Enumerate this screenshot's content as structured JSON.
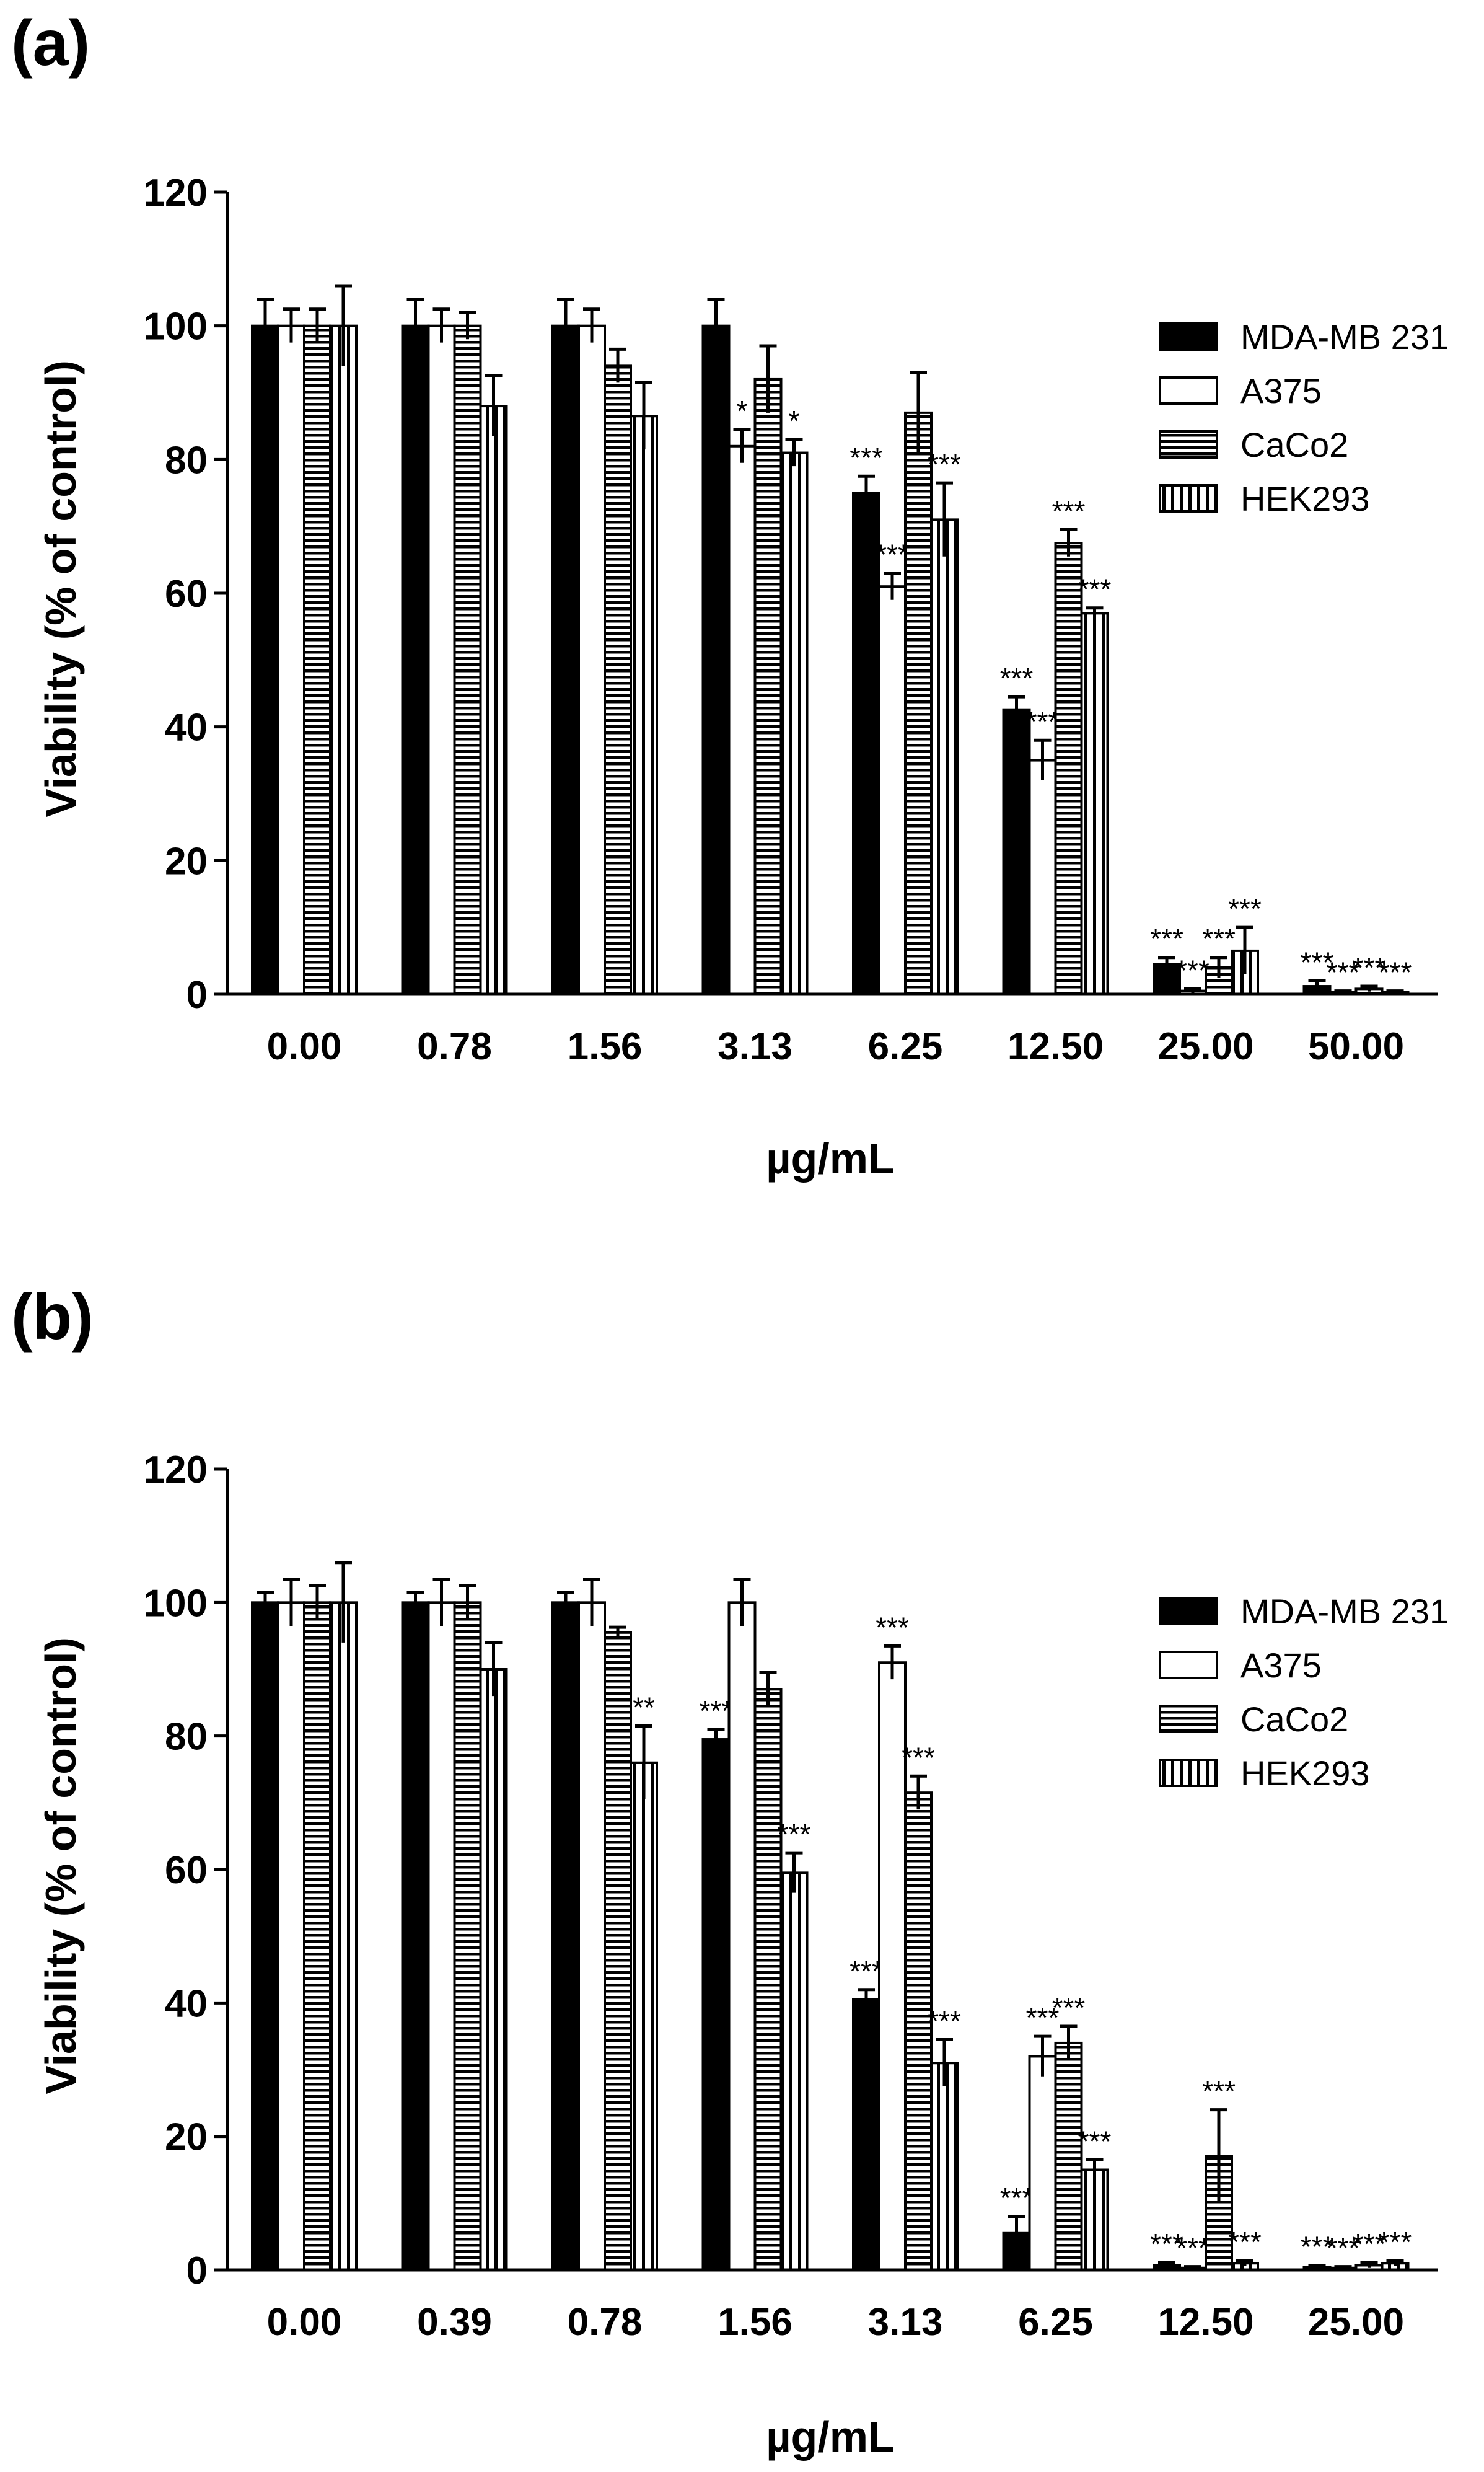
{
  "chart_data": [
    {
      "panel": "(a)",
      "type": "bar",
      "ylabel": "Viability (% of control)",
      "xlabel": "µg/mL",
      "ylim": [
        0,
        120
      ],
      "yticks": [
        "0",
        "20",
        "40",
        "60",
        "80",
        "100",
        "120"
      ],
      "categories": [
        "0.00",
        "0.78",
        "1.56",
        "3.13",
        "6.25",
        "12.50",
        "25.00",
        "50.00"
      ],
      "series": [
        {
          "name": "MDA-MB 231",
          "style": "solid",
          "values": [
            100,
            100,
            100,
            100,
            75,
            42.5,
            4.5,
            1.2
          ],
          "errors": [
            4,
            4,
            4,
            4,
            2.5,
            2,
            1,
            0.8
          ],
          "sig": [
            "",
            "",
            "",
            "",
            "***",
            "***",
            "***",
            "***"
          ]
        },
        {
          "name": "A375",
          "style": "open",
          "values": [
            100,
            100,
            100,
            82,
            61,
            35,
            0.5,
            0.3
          ],
          "errors": [
            2.5,
            2.5,
            2.5,
            2.5,
            2,
            3,
            0.3,
            0.2
          ],
          "sig": [
            "",
            "",
            "",
            "*",
            "***",
            "***",
            "***",
            "***"
          ]
        },
        {
          "name": "CaCo2",
          "style": "hlines",
          "values": [
            100,
            100,
            94,
            92,
            87,
            67.5,
            4,
            0.8
          ],
          "errors": [
            2.5,
            2,
            2.5,
            5,
            6,
            2,
            1.5,
            0.4
          ],
          "sig": [
            "",
            "",
            "",
            "",
            "",
            "***",
            "***",
            "***"
          ]
        },
        {
          "name": "HEK293",
          "style": "vlines",
          "values": [
            100,
            88,
            86.5,
            81,
            71,
            57,
            6.5,
            0.3
          ],
          "errors": [
            6,
            4.5,
            5,
            2,
            5.5,
            0.8,
            3.5,
            0.2
          ],
          "sig": [
            "",
            "",
            "",
            "*",
            "***",
            "***",
            "***",
            "***"
          ]
        }
      ]
    },
    {
      "panel": "(b)",
      "type": "bar",
      "ylabel": "Viability (% of control)",
      "xlabel": "µg/mL",
      "ylim": [
        0,
        120
      ],
      "yticks": [
        "0",
        "20",
        "40",
        "60",
        "80",
        "100",
        "120"
      ],
      "categories": [
        "0.00",
        "0.39",
        "0.78",
        "1.56",
        "3.13",
        "6.25",
        "12.50",
        "25.00"
      ],
      "series": [
        {
          "name": "MDA-MB 231",
          "style": "solid",
          "values": [
            100,
            100,
            100,
            79.5,
            40.5,
            5.5,
            0.7,
            0.4
          ],
          "errors": [
            1.5,
            1.5,
            1.5,
            1.5,
            1.5,
            2.5,
            0.4,
            0.3
          ],
          "sig": [
            "",
            "",
            "",
            "***",
            "***",
            "***",
            "***",
            "***"
          ]
        },
        {
          "name": "A375",
          "style": "open",
          "values": [
            100,
            100,
            100,
            100,
            91,
            32,
            0.3,
            0.3
          ],
          "errors": [
            3.5,
            3.5,
            3.5,
            3.5,
            2.5,
            3,
            0.2,
            0.2
          ],
          "sig": [
            "",
            "",
            "",
            "",
            "***",
            "***",
            "***",
            "***"
          ]
        },
        {
          "name": "CaCo2",
          "style": "hlines",
          "values": [
            100,
            100,
            95.5,
            87,
            71.5,
            34,
            17,
            0.7
          ],
          "errors": [
            2.5,
            2.5,
            0.8,
            2.5,
            2.5,
            2.5,
            7,
            0.4
          ],
          "sig": [
            "",
            "",
            "",
            "",
            "***",
            "***",
            "***",
            "***"
          ]
        },
        {
          "name": "HEK293",
          "style": "vlines",
          "values": [
            100,
            90,
            76,
            59.5,
            31,
            15,
            1,
            1
          ],
          "errors": [
            6,
            4,
            5.5,
            3,
            3.5,
            1.5,
            0.4,
            0.4
          ],
          "sig": [
            "",
            "",
            "**",
            "***",
            "***",
            "***",
            "***",
            "***"
          ]
        }
      ]
    }
  ]
}
